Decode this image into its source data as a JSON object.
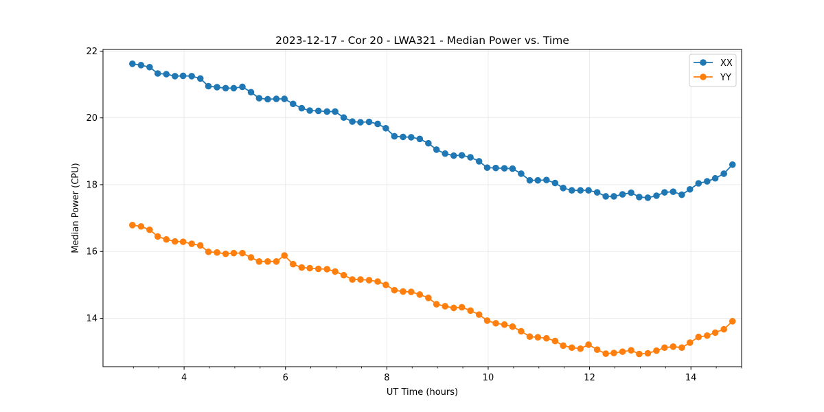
{
  "chart_data": {
    "type": "line",
    "title": "2023-12-17 - Cor 20 - LWA321 - Median Power vs. Time",
    "xlabel": "UT Time (hours)",
    "ylabel": "Median Power (CPU)",
    "xlim": [
      2.4,
      15.0
    ],
    "ylim": [
      12.55,
      22.05
    ],
    "xticks": [
      4,
      6,
      8,
      10,
      12,
      14
    ],
    "yticks": [
      14,
      16,
      18,
      20,
      22
    ],
    "grid": true,
    "legend_position": "top-right",
    "x": [
      2.98,
      3.15,
      3.32,
      3.48,
      3.65,
      3.82,
      3.98,
      4.15,
      4.32,
      4.48,
      4.65,
      4.82,
      4.98,
      5.15,
      5.32,
      5.48,
      5.65,
      5.82,
      5.98,
      6.15,
      6.32,
      6.48,
      6.65,
      6.82,
      6.98,
      7.15,
      7.32,
      7.48,
      7.65,
      7.82,
      7.98,
      8.15,
      8.32,
      8.48,
      8.65,
      8.82,
      8.98,
      9.15,
      9.32,
      9.48,
      9.65,
      9.82,
      9.98,
      10.15,
      10.32,
      10.48,
      10.65,
      10.82,
      10.98,
      11.15,
      11.32,
      11.48,
      11.65,
      11.82,
      11.98,
      12.15,
      12.32,
      12.48,
      12.65,
      12.82,
      12.98,
      13.15,
      13.32,
      13.48,
      13.65,
      13.82,
      13.98,
      14.15,
      14.32,
      14.48,
      14.65,
      14.82
    ],
    "series": [
      {
        "name": "XX",
        "color": "#1f77b4",
        "values": [
          21.62,
          21.58,
          21.52,
          21.33,
          21.31,
          21.25,
          21.26,
          21.25,
          21.18,
          20.95,
          20.92,
          20.89,
          20.89,
          20.93,
          20.77,
          20.59,
          20.56,
          20.57,
          20.57,
          20.42,
          20.29,
          20.22,
          20.21,
          20.19,
          20.19,
          20.01,
          19.89,
          19.87,
          19.88,
          19.82,
          19.69,
          19.45,
          19.43,
          19.42,
          19.37,
          19.24,
          19.05,
          18.93,
          18.87,
          18.88,
          18.82,
          18.7,
          18.51,
          18.5,
          18.49,
          18.48,
          18.33,
          18.13,
          18.13,
          18.14,
          18.05,
          17.9,
          17.83,
          17.83,
          17.83,
          17.77,
          17.65,
          17.65,
          17.71,
          17.76,
          17.63,
          17.61,
          17.67,
          17.77,
          17.79,
          17.7,
          17.86,
          18.04,
          18.1,
          18.19,
          18.33,
          18.6
        ]
      },
      {
        "name": "YY",
        "color": "#ff7f0e",
        "values": [
          16.79,
          16.75,
          16.65,
          16.45,
          16.36,
          16.3,
          16.29,
          16.23,
          16.18,
          15.99,
          15.97,
          15.93,
          15.95,
          15.95,
          15.82,
          15.7,
          15.7,
          15.7,
          15.88,
          15.62,
          15.52,
          15.5,
          15.48,
          15.47,
          15.4,
          15.29,
          15.16,
          15.16,
          15.14,
          15.1,
          15.0,
          14.84,
          14.8,
          14.79,
          14.71,
          14.61,
          14.42,
          14.36,
          14.31,
          14.33,
          14.23,
          14.11,
          13.93,
          13.85,
          13.81,
          13.75,
          13.61,
          13.45,
          13.43,
          13.4,
          13.32,
          13.18,
          13.12,
          13.09,
          13.21,
          13.06,
          12.94,
          12.96,
          13.0,
          13.04,
          12.93,
          12.95,
          13.03,
          13.12,
          13.15,
          13.12,
          13.27,
          13.44,
          13.48,
          13.57,
          13.67,
          13.91
        ]
      }
    ]
  }
}
